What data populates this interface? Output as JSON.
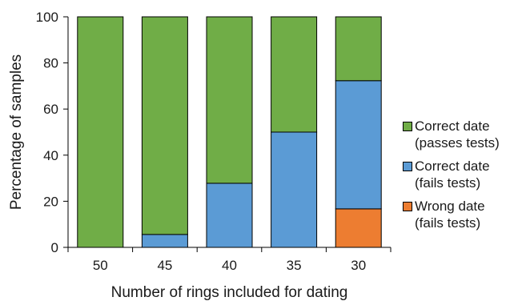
{
  "chart_data": {
    "type": "bar",
    "stacked": true,
    "categories": [
      "50",
      "45",
      "40",
      "35",
      "30"
    ],
    "series": [
      {
        "name": "Wrong date (fails tests)",
        "color": "#ed7d31",
        "values": [
          0,
          0,
          0,
          0,
          16.7
        ]
      },
      {
        "name": "Correct date (fails tests)",
        "color": "#5b9bd5",
        "values": [
          0,
          5.6,
          27.8,
          50,
          55.6
        ]
      },
      {
        "name": "Correct date (passes tests)",
        "color": "#70ad47",
        "values": [
          100,
          94.4,
          72.2,
          50,
          27.7
        ]
      }
    ],
    "xlabel": "Number of rings included for dating",
    "ylabel": "Percentage of samples",
    "ylim": [
      0,
      100
    ],
    "yticks": [
      0,
      20,
      40,
      60,
      80,
      100
    ],
    "grid": false,
    "legend_position": "right"
  },
  "legend": [
    {
      "line1": "Correct date",
      "line2": "(passes tests)",
      "color": "#70ad47"
    },
    {
      "line1": "Correct date",
      "line2": "(fails tests)",
      "color": "#5b9bd5"
    },
    {
      "line1": "Wrong date",
      "line2": "(fails tests)",
      "color": "#ed7d31"
    }
  ]
}
